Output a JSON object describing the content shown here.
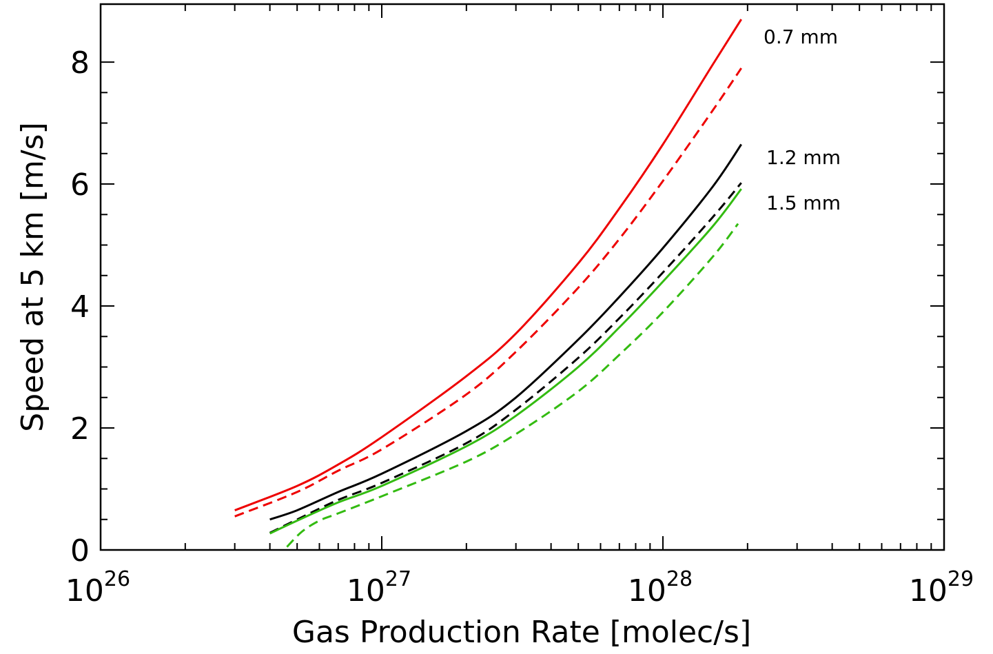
{
  "chart_data": {
    "type": "line",
    "xlabel": "Gas Production Rate [molec/s]",
    "ylabel": "Speed at 5 km [m/s]",
    "xscale": "log",
    "xlim": [
      1e+26,
      1e+29
    ],
    "ylim": [
      0,
      9
    ],
    "x_ticks": [
      {
        "base": "10",
        "exp": "26",
        "value": 1e+26
      },
      {
        "base": "10",
        "exp": "27",
        "value": 1e+27
      },
      {
        "base": "10",
        "exp": "28",
        "value": 1e+28
      },
      {
        "base": "10",
        "exp": "29",
        "value": 1e+29
      }
    ],
    "y_ticks": [
      "0",
      "2",
      "4",
      "6",
      "8"
    ],
    "annotations": [
      "0.7 mm",
      "1.2 mm",
      "1.5 mm"
    ],
    "series": [
      {
        "color": "#ee0000",
        "dash": "solid",
        "x": [
          3e+26,
          5e+26,
          7e+26,
          1e+27,
          2e+27,
          3e+27,
          5e+27,
          7e+27,
          1e+28,
          1.5e+28,
          1.9e+28
        ],
        "y": [
          0.65,
          1.05,
          1.4,
          1.85,
          2.85,
          3.55,
          4.7,
          5.6,
          6.65,
          7.95,
          8.7
        ]
      },
      {
        "color": "#ee0000",
        "dash": "dashed",
        "x": [
          3e+26,
          5e+26,
          7e+26,
          1e+27,
          2e+27,
          3e+27,
          5e+27,
          7e+27,
          1e+28,
          1.5e+28,
          1.9e+28
        ],
        "y": [
          0.55,
          0.95,
          1.3,
          1.65,
          2.55,
          3.25,
          4.3,
          5.1,
          6.05,
          7.2,
          7.9
        ]
      },
      {
        "color": "#000000",
        "dash": "solid",
        "x": [
          4e+26,
          5e+26,
          7e+26,
          1e+27,
          2e+27,
          3e+27,
          5e+27,
          7e+27,
          1e+28,
          1.5e+28,
          1.9e+28
        ],
        "y": [
          0.5,
          0.65,
          0.95,
          1.25,
          1.95,
          2.5,
          3.45,
          4.15,
          4.95,
          5.95,
          6.65
        ]
      },
      {
        "color": "#000000",
        "dash": "dashed",
        "x": [
          4e+26,
          5e+26,
          7e+26,
          1e+27,
          2e+27,
          3e+27,
          5e+27,
          7e+27,
          1e+28,
          1.5e+28,
          1.9e+28
        ],
        "y": [
          0.28,
          0.5,
          0.82,
          1.1,
          1.75,
          2.3,
          3.15,
          3.8,
          4.55,
          5.45,
          6.02
        ]
      },
      {
        "color": "#33bb11",
        "dash": "solid",
        "x": [
          4e+26,
          5e+26,
          7e+26,
          1e+27,
          2e+27,
          3e+27,
          5e+27,
          7e+27,
          1e+28,
          1.5e+28,
          1.9e+28
        ],
        "y": [
          0.27,
          0.48,
          0.78,
          1.05,
          1.7,
          2.2,
          3.0,
          3.65,
          4.4,
          5.3,
          5.92
        ]
      },
      {
        "color": "#33bb11",
        "dash": "dashed",
        "x": [
          4.6e+26,
          5.2e+26,
          6e+26,
          7e+26,
          1e+27,
          2e+27,
          3e+27,
          5e+27,
          7e+27,
          1e+28,
          1.5e+28,
          1.85e+28
        ],
        "y": [
          0.05,
          0.3,
          0.48,
          0.6,
          0.88,
          1.45,
          1.9,
          2.6,
          3.2,
          3.9,
          4.8,
          5.35
        ]
      }
    ]
  }
}
